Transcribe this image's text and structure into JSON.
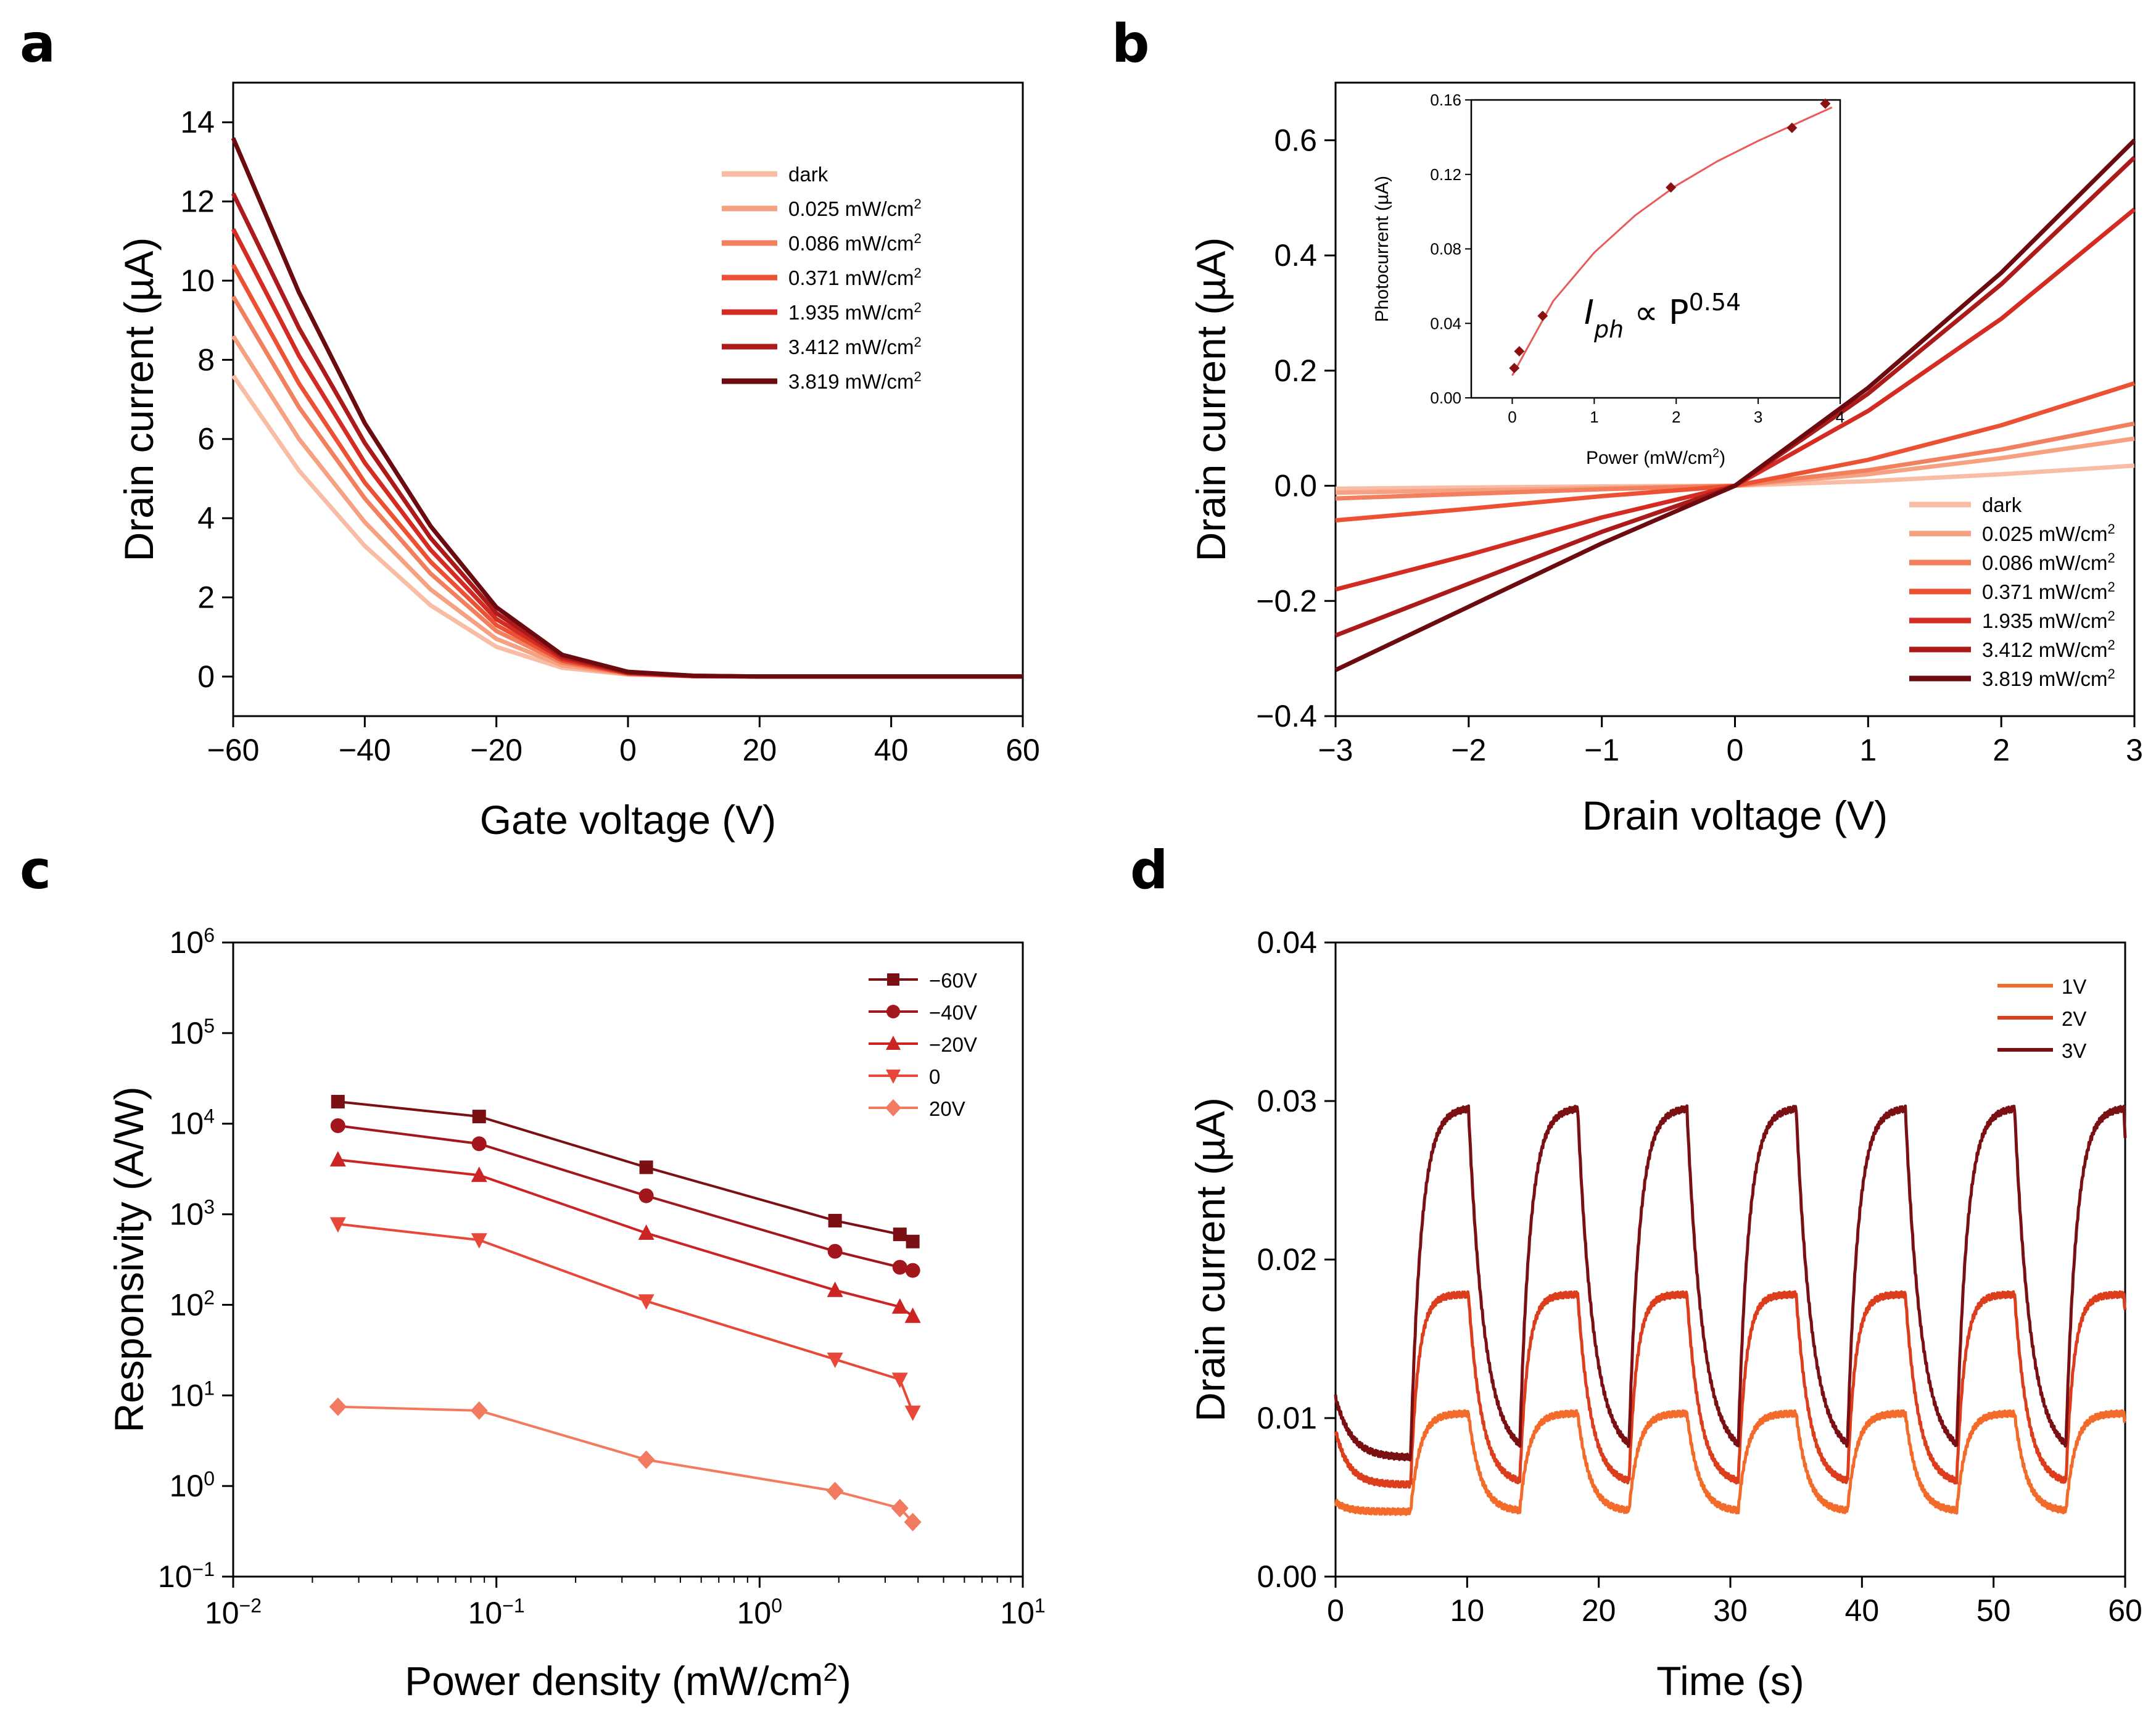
{
  "panels": {
    "a": {
      "label": "a"
    },
    "b": {
      "label": "b"
    },
    "c": {
      "label": "c"
    },
    "d": {
      "label": "d"
    }
  },
  "chart_data": [
    {
      "id": "a",
      "type": "line",
      "title": "",
      "xlabel": "Gate voltage (V)",
      "ylabel": "Drain current (µA)",
      "xlim": [
        -60,
        60
      ],
      "ylim": [
        -1,
        15
      ],
      "xticks": [
        -60,
        -40,
        -20,
        0,
        20,
        40,
        60
      ],
      "xtick_labels": [
        "−60",
        "−40",
        "−20",
        "0",
        "20",
        "40",
        "60"
      ],
      "yticks": [
        0,
        2,
        4,
        6,
        8,
        10,
        12,
        14
      ],
      "ytick_labels": [
        "0",
        "2",
        "4",
        "6",
        "8",
        "10",
        "12",
        "14"
      ],
      "legend_position": "top-right",
      "x": [
        -60,
        -50,
        -40,
        -30,
        -20,
        -10,
        0,
        10,
        20,
        40,
        60
      ],
      "series": [
        {
          "name": "dark",
          "unit": "",
          "color": "#f9bca5",
          "values": [
            7.6,
            5.2,
            3.3,
            1.8,
            0.75,
            0.22,
            0.05,
            0.01,
            0.0,
            0.0,
            0.0
          ]
        },
        {
          "name": "0.025 mW/cm",
          "unit": "2",
          "color": "#f6a182",
          "values": [
            8.6,
            6.0,
            3.9,
            2.2,
            0.95,
            0.28,
            0.06,
            0.01,
            0.0,
            0.0,
            0.0
          ]
        },
        {
          "name": "0.086 mW/cm",
          "unit": "2",
          "color": "#f27f5e",
          "values": [
            9.6,
            6.8,
            4.5,
            2.6,
            1.15,
            0.35,
            0.07,
            0.01,
            0.0,
            0.0,
            0.0
          ]
        },
        {
          "name": "0.371 mW/cm",
          "unit": "2",
          "color": "#ec5134",
          "values": [
            10.4,
            7.4,
            4.9,
            2.9,
            1.3,
            0.4,
            0.08,
            0.01,
            0.0,
            0.0,
            0.0
          ]
        },
        {
          "name": "1.935 mW/cm",
          "unit": "2",
          "color": "#d42b23",
          "values": [
            11.3,
            8.1,
            5.4,
            3.2,
            1.45,
            0.45,
            0.09,
            0.01,
            0.0,
            0.0,
            0.0
          ]
        },
        {
          "name": "3.412 mW/cm",
          "unit": "2",
          "color": "#ad1a1a",
          "values": [
            12.2,
            8.8,
            5.9,
            3.5,
            1.6,
            0.5,
            0.1,
            0.02,
            0.0,
            0.0,
            0.0
          ]
        },
        {
          "name": "3.819 mW/cm",
          "unit": "2",
          "color": "#6b0a0f",
          "values": [
            13.6,
            9.7,
            6.4,
            3.8,
            1.75,
            0.55,
            0.12,
            0.02,
            0.0,
            0.0,
            0.0
          ]
        }
      ]
    },
    {
      "id": "b",
      "type": "line",
      "title": "",
      "xlabel": "Drain voltage (V)",
      "ylabel": "Drain current (µA)",
      "xlim": [
        -3,
        3
      ],
      "ylim": [
        -0.4,
        0.7
      ],
      "xticks": [
        -3,
        -2,
        -1,
        0,
        1,
        2,
        3
      ],
      "xtick_labels": [
        "−3",
        "−2",
        "−1",
        "0",
        "1",
        "2",
        "3"
      ],
      "yticks": [
        -0.4,
        -0.2,
        0.0,
        0.2,
        0.4,
        0.6
      ],
      "ytick_labels": [
        "−0.4",
        "−0.2",
        "0.0",
        "0.2",
        "0.4",
        "0.6"
      ],
      "legend_position": "bottom-right",
      "x": [
        -3,
        -2,
        -1,
        0,
        1,
        2,
        3
      ],
      "series": [
        {
          "name": "dark",
          "unit": "",
          "color": "#f9bca5",
          "values": [
            -0.005,
            -0.003,
            -0.001,
            0.0,
            0.008,
            0.02,
            0.035
          ]
        },
        {
          "name": "0.025 mW/cm",
          "unit": "2",
          "color": "#f6a182",
          "values": [
            -0.012,
            -0.008,
            -0.004,
            0.0,
            0.02,
            0.048,
            0.082
          ]
        },
        {
          "name": "0.086 mW/cm",
          "unit": "2",
          "color": "#f27f5e",
          "values": [
            -0.022,
            -0.014,
            -0.006,
            0.0,
            0.027,
            0.063,
            0.108
          ]
        },
        {
          "name": "0.371 mW/cm",
          "unit": "2",
          "color": "#ec5134",
          "values": [
            -0.06,
            -0.04,
            -0.018,
            0.0,
            0.045,
            0.105,
            0.178
          ]
        },
        {
          "name": "1.935 mW/cm",
          "unit": "2",
          "color": "#d42b23",
          "values": [
            -0.18,
            -0.12,
            -0.055,
            0.0,
            0.13,
            0.29,
            0.48
          ]
        },
        {
          "name": "3.412 mW/cm",
          "unit": "2",
          "color": "#ad1a1a",
          "values": [
            -0.26,
            -0.17,
            -0.08,
            0.0,
            0.16,
            0.35,
            0.57
          ]
        },
        {
          "name": "3.819 mW/cm",
          "unit": "2",
          "color": "#6b0a0f",
          "values": [
            -0.32,
            -0.21,
            -0.1,
            0.0,
            0.17,
            0.37,
            0.6
          ]
        }
      ],
      "inset": {
        "type": "scatter",
        "xlabel": "Power (mW/cm",
        "xlabel_sup": "2",
        "xlabel_end": ")",
        "ylabel": "Photocurrent (µA)",
        "xlim": [
          -0.5,
          4
        ],
        "ylim": [
          0,
          0.16
        ],
        "xticks": [
          0,
          1,
          2,
          3,
          4
        ],
        "xtick_labels": [
          "0",
          "1",
          "2",
          "3",
          "4"
        ],
        "yticks": [
          0,
          0.04,
          0.08,
          0.12,
          0.16
        ],
        "ytick_labels": [
          "0.00",
          "0.04",
          "0.08",
          "0.12",
          "0.16"
        ],
        "x": [
          0.025,
          0.086,
          0.371,
          1.935,
          3.412,
          3.819
        ],
        "y": [
          0.016,
          0.025,
          0.044,
          0.113,
          0.145,
          0.158
        ],
        "fit_x": [
          0.0,
          0.5,
          1.0,
          1.5,
          2.0,
          2.5,
          3.0,
          3.5,
          3.9
        ],
        "fit_y": [
          0.012,
          0.052,
          0.078,
          0.098,
          0.114,
          0.127,
          0.138,
          0.148,
          0.156
        ],
        "marker_color": "#8b1010",
        "fit_color": "#e85b5b",
        "annotation_base": "I",
        "annotation_sub": "ph",
        "annotation_mid": " ∝ P",
        "annotation_sup": "0.54"
      }
    },
    {
      "id": "c",
      "type": "line",
      "title": "",
      "xlabel": "Power density (mW/cm",
      "xlabel_sup": "2",
      "xlabel_end": ")",
      "ylabel": "Responsivity (A/W)",
      "x_scale": "log",
      "y_scale": "log",
      "xlim": [
        0.01,
        10
      ],
      "ylim": [
        0.1,
        1000000
      ],
      "xtick_base": "10",
      "xtick_exponents": [
        "−2",
        "−1",
        "0",
        "1"
      ],
      "ytick_base": "10",
      "ytick_exponents": [
        "−1",
        "0",
        "1",
        "2",
        "3",
        "4",
        "5",
        "6"
      ],
      "legend_position": "top-right",
      "x": [
        0.025,
        0.086,
        0.371,
        1.935,
        3.412,
        3.819
      ],
      "series": [
        {
          "name": "−60V",
          "marker": "square",
          "color": "#7a0f14",
          "values": [
            17500,
            12000,
            3300,
            850,
            600,
            500
          ]
        },
        {
          "name": "−40V",
          "marker": "circle",
          "color": "#a3161b",
          "values": [
            9500,
            6000,
            1600,
            390,
            260,
            240
          ]
        },
        {
          "name": "−20V",
          "marker": "triangle-up",
          "color": "#cc2424",
          "values": [
            4000,
            2700,
            620,
            145,
            95,
            75
          ]
        },
        {
          "name": "0",
          "marker": "triangle-down",
          "color": "#e8483a",
          "values": [
            780,
            520,
            110,
            25,
            15,
            6.5
          ]
        },
        {
          "name": "20V",
          "marker": "diamond",
          "color": "#f27a60",
          "values": [
            7.5,
            6.8,
            1.95,
            0.88,
            0.57,
            0.4
          ]
        }
      ]
    },
    {
      "id": "d",
      "type": "line",
      "title": "",
      "xlabel": "Time (s)",
      "ylabel": "Drain current (µA)",
      "xlim": [
        0,
        60
      ],
      "ylim": [
        0,
        0.04
      ],
      "xticks": [
        0,
        10,
        20,
        30,
        40,
        50,
        60
      ],
      "xtick_labels": [
        "0",
        "10",
        "20",
        "30",
        "40",
        "50",
        "60"
      ],
      "yticks": [
        0,
        0.01,
        0.02,
        0.03,
        0.04
      ],
      "ytick_labels": [
        "0.00",
        "0.01",
        "0.02",
        "0.03",
        "0.04"
      ],
      "legend_position": "top-right",
      "on_times": [
        5.7,
        14.0,
        22.3,
        30.6,
        38.9,
        47.2,
        55.5
      ],
      "pulse_on_duration": 4.4,
      "series": [
        {
          "name": "1V",
          "color": "#f26b2a",
          "initial": 0.0047,
          "dark_level": 0.0041,
          "on_level": 0.0103,
          "tau_on": 0.7,
          "tau_off": 0.9
        },
        {
          "name": "2V",
          "color": "#dc3d1c",
          "initial": 0.0092,
          "dark_level": 0.0058,
          "on_level": 0.0178,
          "tau_on": 0.6,
          "tau_off": 1.0
        },
        {
          "name": "3V",
          "color": "#7a1014",
          "initial": 0.0113,
          "dark_level": 0.0075,
          "on_level": 0.0296,
          "tau_on": 0.8,
          "tau_off": 1.2
        }
      ]
    }
  ]
}
